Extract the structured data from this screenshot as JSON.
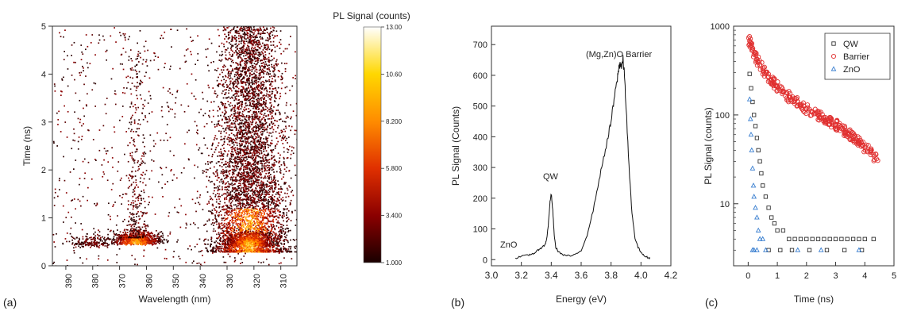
{
  "panels": {
    "a": {
      "label": "(a)"
    },
    "b": {
      "label": "(b)"
    },
    "c": {
      "label": "(c)"
    }
  },
  "colorbar": {
    "title": "PL Signal (counts)",
    "ticks": [
      "13.00",
      "10.60",
      "8.200",
      "5.800",
      "3.400",
      "1.000"
    ],
    "colors": [
      "#1a0000",
      "#8b0000",
      "#e03000",
      "#ff8c00",
      "#ffd700",
      "#ffffff"
    ]
  },
  "chart_data": [
    {
      "type": "heatmap",
      "xlabel": "Wavelength (nm)",
      "ylabel": "Time (ns)",
      "xlim": [
        395,
        304
      ],
      "ylim": [
        0,
        5
      ],
      "x_ticks": [
        "390",
        "380",
        "370",
        "360",
        "350",
        "340",
        "330",
        "320",
        "310"
      ],
      "y_ticks": [
        "0",
        "1",
        "2",
        "3",
        "4",
        "5"
      ],
      "clim": [
        1.0,
        13.0
      ],
      "hotspots": [
        {
          "wavelength": 364,
          "time": 0.48,
          "peak_counts": 12
        },
        {
          "wavelength": 322,
          "time": 0.45,
          "peak_counts": 13
        },
        {
          "wavelength": 380,
          "time": 0.42,
          "peak_counts": 3
        }
      ]
    },
    {
      "type": "line",
      "xlabel": "Energy (eV)",
      "ylabel": "PL Signal (Counts)",
      "xlim": [
        3.0,
        4.2
      ],
      "ylim": [
        -20,
        760
      ],
      "x_ticks": [
        "3.0",
        "3.2",
        "3.4",
        "3.6",
        "3.8",
        "4.0",
        "4.2"
      ],
      "y_ticks": [
        "0",
        "100",
        "200",
        "300",
        "400",
        "500",
        "600",
        "700"
      ],
      "annotations": [
        "ZnO",
        "QW",
        "(Mg,Zn)O Barrier"
      ],
      "series": [
        {
          "x": [
            3.16,
            3.2,
            3.25,
            3.28,
            3.3,
            3.32,
            3.34,
            3.36,
            3.37,
            3.38,
            3.39,
            3.4,
            3.41,
            3.42,
            3.43,
            3.45,
            3.48,
            3.52,
            3.56,
            3.6,
            3.64,
            3.68,
            3.72,
            3.75,
            3.78,
            3.8,
            3.82,
            3.84,
            3.85,
            3.86,
            3.87,
            3.88,
            3.89,
            3.9,
            3.92,
            3.94,
            3.96,
            3.98,
            4.0,
            4.02,
            4.04,
            4.06
          ],
          "y": [
            5,
            10,
            15,
            20,
            25,
            35,
            40,
            50,
            70,
            110,
            180,
            215,
            160,
            80,
            40,
            25,
            15,
            12,
            15,
            30,
            80,
            160,
            260,
            330,
            400,
            450,
            520,
            580,
            620,
            640,
            630,
            650,
            600,
            500,
            300,
            150,
            70,
            40,
            25,
            12,
            8,
            5
          ]
        }
      ]
    },
    {
      "type": "scatter",
      "xlabel": "Time (ns)",
      "ylabel": "PL Signal (counts)",
      "xlim": [
        -0.5,
        5.0
      ],
      "ylim": [
        2,
        1000
      ],
      "log_y": true,
      "x_ticks": [
        "0",
        "1",
        "2",
        "3",
        "4",
        "5"
      ],
      "y_ticks": [
        "10",
        "100",
        "1000"
      ],
      "legend_position": "top-right",
      "series": [
        {
          "name": "QW",
          "color": "#333333",
          "marker": "square",
          "x": [
            0.05,
            0.1,
            0.15,
            0.2,
            0.25,
            0.3,
            0.35,
            0.4,
            0.45,
            0.5,
            0.6,
            0.7,
            0.8,
            0.9,
            1.0,
            1.2,
            1.4,
            1.6,
            1.8,
            2.0,
            2.2,
            2.4,
            2.6,
            2.8,
            3.0,
            3.2,
            3.4,
            3.6,
            3.8,
            4.0,
            4.3,
            0.7,
            1.1,
            1.5,
            2.1,
            2.7,
            3.3,
            3.9
          ],
          "y": [
            290,
            200,
            140,
            100,
            75,
            55,
            40,
            30,
            22,
            16,
            12,
            9,
            7,
            6,
            5,
            5,
            4,
            4,
            4,
            4,
            4,
            4,
            4,
            4,
            4,
            4,
            4,
            4,
            4,
            4,
            4,
            3,
            3,
            3,
            3,
            3,
            3,
            3
          ]
        },
        {
          "name": "Barrier",
          "color": "#e03030",
          "marker": "circle",
          "x": [
            0.05,
            0.1,
            0.15,
            0.2,
            0.3,
            0.4,
            0.5,
            0.6,
            0.7,
            0.8,
            0.9,
            1.0,
            1.2,
            1.4,
            1.6,
            1.8,
            2.0,
            2.2,
            2.4,
            2.6,
            2.8,
            3.0,
            3.2,
            3.4,
            3.6,
            3.8,
            4.0,
            4.2,
            4.4
          ],
          "y": [
            680,
            600,
            540,
            480,
            420,
            370,
            330,
            300,
            270,
            245,
            225,
            210,
            180,
            160,
            145,
            130,
            118,
            108,
            100,
            92,
            85,
            78,
            70,
            63,
            57,
            50,
            43,
            38,
            32
          ]
        },
        {
          "name": "ZnO",
          "color": "#3a7fd0",
          "marker": "triangle",
          "x": [
            0.05,
            0.08,
            0.1,
            0.12,
            0.15,
            0.18,
            0.2,
            0.25,
            0.3,
            0.35,
            0.4,
            0.5,
            0.6,
            0.15,
            0.2,
            0.3,
            1.7,
            2.5,
            3.8
          ],
          "y": [
            150,
            90,
            60,
            40,
            25,
            16,
            12,
            9,
            7,
            5,
            4,
            4,
            3,
            3,
            3,
            3,
            3,
            3,
            3
          ]
        }
      ]
    }
  ]
}
